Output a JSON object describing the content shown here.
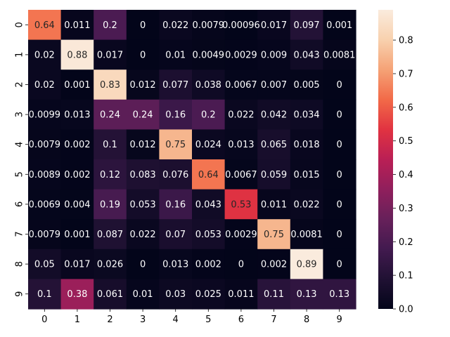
{
  "chart_data": {
    "type": "heatmap",
    "title": "",
    "xlabel": "",
    "ylabel": "",
    "x_categories": [
      "0",
      "1",
      "2",
      "3",
      "4",
      "5",
      "6",
      "7",
      "8",
      "9"
    ],
    "y_categories": [
      "0",
      "1",
      "2",
      "3",
      "4",
      "5",
      "6",
      "7",
      "8",
      "9"
    ],
    "cells": [
      [
        "0.64",
        "0.011",
        "0.2",
        "0",
        "0.022",
        "0.0079",
        "0.00096",
        "0.017",
        "0.097",
        "0.001"
      ],
      [
        "0.02",
        "0.88",
        "0.017",
        "0",
        "0.01",
        "0.0049",
        "0.0029",
        "0.009",
        "0.043",
        "0.0081"
      ],
      [
        "0.02",
        "0.001",
        "0.83",
        "0.012",
        "0.077",
        "0.038",
        "0.0067",
        "0.007",
        "0.005",
        "0"
      ],
      [
        "0.0099",
        "0.013",
        "0.24",
        "0.24",
        "0.16",
        "0.2",
        "0.022",
        "0.042",
        "0.034",
        "0"
      ],
      [
        "0.0079",
        "0.002",
        "0.1",
        "0.012",
        "0.75",
        "0.024",
        "0.013",
        "0.065",
        "0.018",
        "0"
      ],
      [
        "0.0089",
        "0.002",
        "0.12",
        "0.083",
        "0.076",
        "0.64",
        "0.0067",
        "0.059",
        "0.015",
        "0"
      ],
      [
        "0.0069",
        "0.004",
        "0.19",
        "0.053",
        "0.16",
        "0.043",
        "0.53",
        "0.011",
        "0.022",
        "0"
      ],
      [
        "0.0079",
        "0.001",
        "0.087",
        "0.022",
        "0.07",
        "0.053",
        "0.0029",
        "0.75",
        "0.0081",
        "0"
      ],
      [
        "0.05",
        "0.017",
        "0.026",
        "0",
        "0.013",
        "0.002",
        "0",
        "0.002",
        "0.89",
        "0"
      ],
      [
        "0.1",
        "0.38",
        "0.061",
        "0.01",
        "0.03",
        "0.025",
        "0.011",
        "0.11",
        "0.13",
        "0.13"
      ]
    ],
    "colorbar": {
      "colormap": "rocket",
      "range": [
        0,
        0.89
      ],
      "tick_labels": [
        "0.0",
        "0.1",
        "0.2",
        "0.3",
        "0.4",
        "0.5",
        "0.6",
        "0.7",
        "0.8"
      ]
    }
  }
}
